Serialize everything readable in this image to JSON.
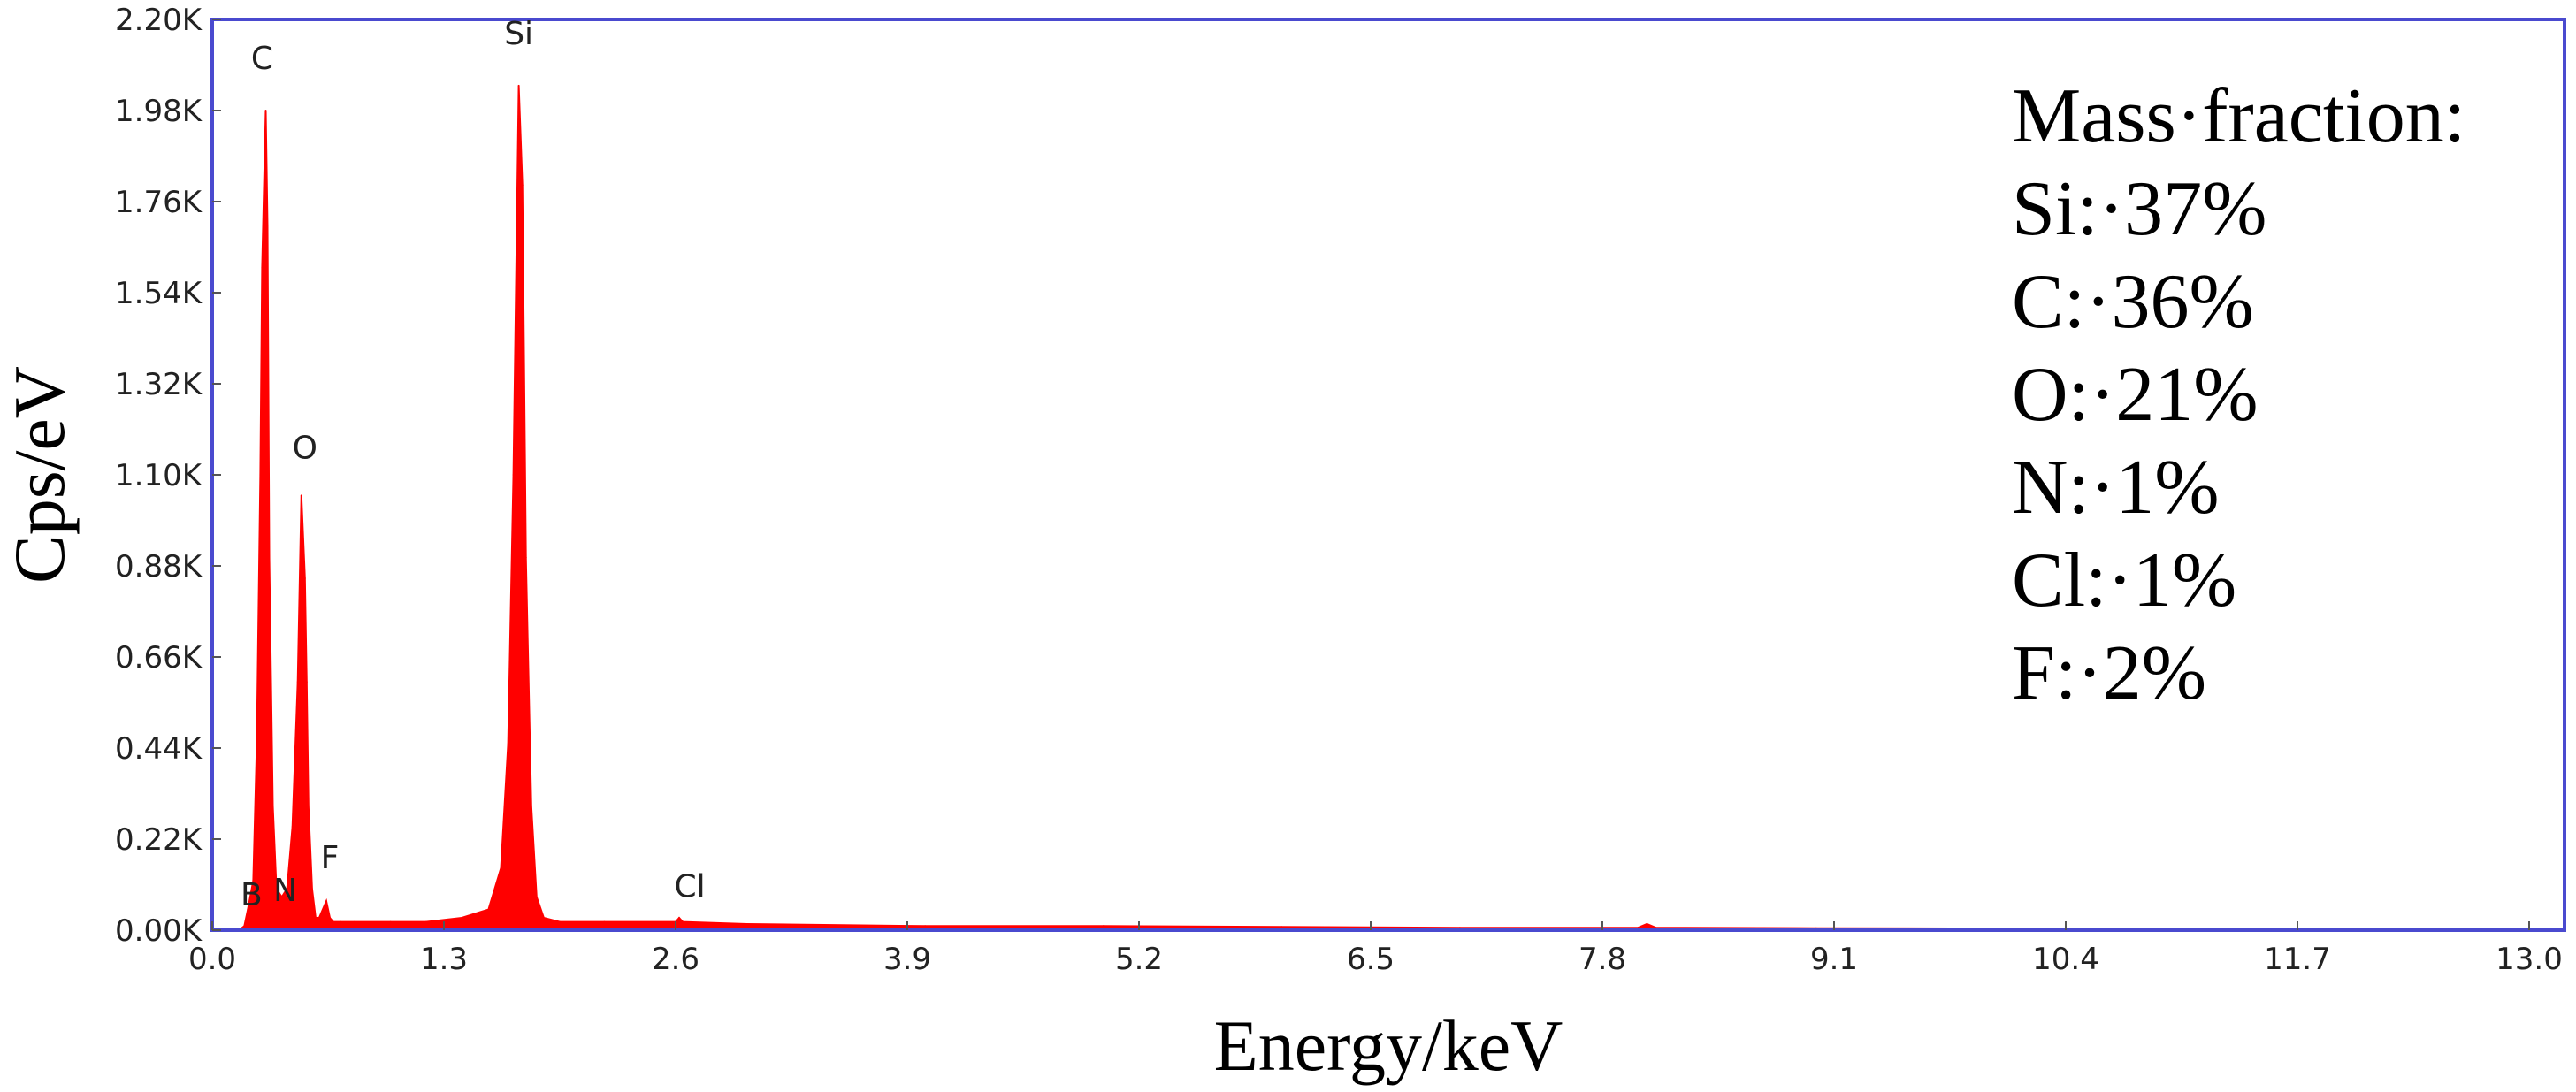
{
  "chart_data": {
    "type": "line",
    "title": "",
    "xlabel": "Energy/keV",
    "ylabel": "Cps/eV",
    "xlim": [
      0,
      13.0
    ],
    "ylim": [
      0,
      2.2
    ],
    "x_ticks": [
      "0.0",
      "1.3",
      "2.6",
      "3.9",
      "5.2",
      "6.5",
      "7.8",
      "9.1",
      "10.4",
      "11.7",
      "13.0"
    ],
    "y_ticks": [
      "0.00K",
      "0.22K",
      "0.44K",
      "0.66K",
      "0.88K",
      "1.10K",
      "1.32K",
      "1.54K",
      "1.76K",
      "1.98K",
      "2.20K"
    ],
    "grid": false,
    "series_color": "#ff0000",
    "frame_color": "#4a4acf",
    "series": [
      {
        "x": [
          0.15,
          0.18,
          0.2,
          0.23,
          0.25,
          0.27,
          0.28,
          0.3,
          0.31,
          0.32,
          0.34,
          0.36,
          0.39,
          0.42,
          0.45,
          0.48,
          0.5,
          0.52,
          0.53,
          0.54,
          0.56,
          0.58,
          0.6,
          0.64,
          0.66,
          0.68,
          0.72,
          0.8,
          1.0,
          1.2,
          1.4,
          1.55,
          1.62,
          1.66,
          1.69,
          1.72,
          1.74,
          1.76,
          1.79,
          1.82,
          1.86,
          1.95,
          2.2,
          2.6,
          2.62,
          2.64,
          3.0,
          4.0,
          5.0,
          6.0,
          7.0,
          8.0,
          8.05,
          8.1,
          9.0,
          10.0,
          11.0,
          12.0,
          13.0
        ],
        "y": [
          0.0,
          0.01,
          0.05,
          0.12,
          0.45,
          1.1,
          1.6,
          1.98,
          1.7,
          0.9,
          0.3,
          0.1,
          0.08,
          0.1,
          0.25,
          0.6,
          1.05,
          0.85,
          0.6,
          0.3,
          0.1,
          0.03,
          0.03,
          0.07,
          0.03,
          0.02,
          0.02,
          0.02,
          0.02,
          0.02,
          0.03,
          0.05,
          0.15,
          0.45,
          1.1,
          2.04,
          1.8,
          0.9,
          0.3,
          0.08,
          0.03,
          0.02,
          0.02,
          0.02,
          0.03,
          0.02,
          0.015,
          0.01,
          0.01,
          0.008,
          0.006,
          0.006,
          0.015,
          0.006,
          0.005,
          0.004,
          0.003,
          0.003,
          0.003
        ]
      }
    ],
    "peak_labels": [
      {
        "text": "C",
        "x": 0.28,
        "y": 2.08
      },
      {
        "text": "O",
        "x": 0.52,
        "y": 1.14
      },
      {
        "text": "Si",
        "x": 1.72,
        "y": 2.14
      },
      {
        "text": "B",
        "x": 0.22,
        "y": 0.06
      },
      {
        "text": "N",
        "x": 0.41,
        "y": 0.07
      },
      {
        "text": "F",
        "x": 0.66,
        "y": 0.15
      },
      {
        "text": "Cl",
        "x": 2.68,
        "y": 0.08
      }
    ],
    "annotation": {
      "lines": [
        "Mass·fraction:",
        "Si:·37%",
        "C:·36%",
        "O:·21%",
        "N:·1%",
        "Cl:·1%",
        "F:·2%"
      ]
    }
  }
}
